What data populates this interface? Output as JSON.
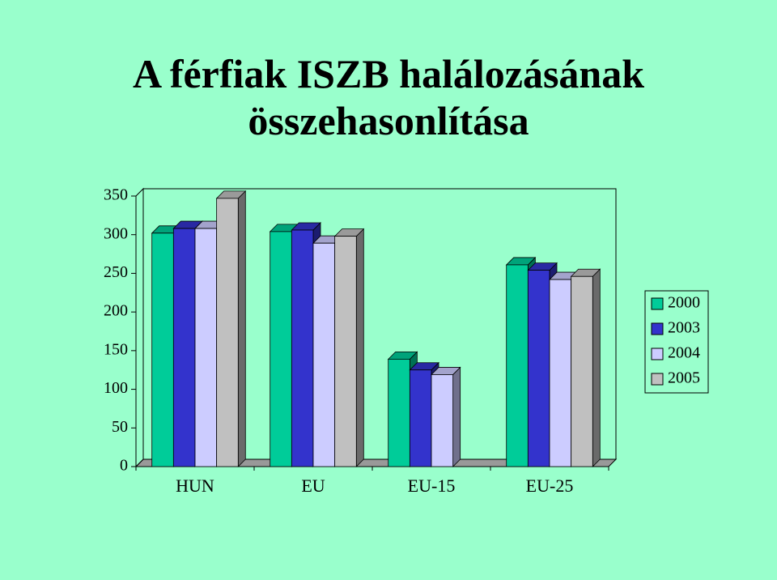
{
  "chart_data": {
    "type": "bar3d",
    "title": "A férfiak ISZB halálozásának összehasonlítása",
    "categories": [
      "HUN",
      "EU",
      "EU-15",
      "EU-25"
    ],
    "series": [
      {
        "name": "2000",
        "color": "#00cc99",
        "values": [
          302,
          304,
          139,
          261
        ]
      },
      {
        "name": "2003",
        "color": "#3333cc",
        "values": [
          308,
          306,
          125,
          254
        ]
      },
      {
        "name": "2004",
        "color": "#ccccff",
        "values": [
          308,
          289,
          119,
          242
        ]
      },
      {
        "name": "2005",
        "color": "#c0c0c0",
        "values": [
          347,
          298,
          null,
          246
        ]
      }
    ],
    "ylim": [
      0,
      350
    ],
    "yticks": [
      0,
      50,
      100,
      150,
      200,
      250,
      300,
      350
    ],
    "legend": "right"
  }
}
